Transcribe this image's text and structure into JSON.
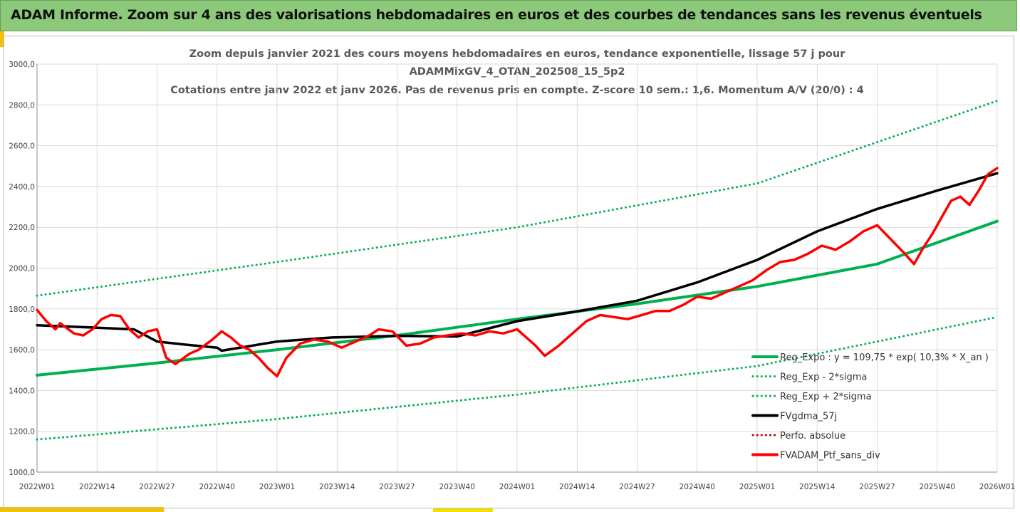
{
  "banner": {
    "title": "ADAM Informe. Zoom sur 4 ans des valorisations hebdomadaires en euros et des courbes de tendances sans les revenus éventuels"
  },
  "colors": {
    "banner_bg": "#8cc97a",
    "reg_expo": "#00b050",
    "fvgdma": "#000000",
    "perfo_absolue": "#c00000",
    "fvadam": "#ff0000"
  },
  "chart_data": {
    "type": "line",
    "title_lines": [
      "Zoom depuis janvier 2021 des cours moyens hebdomadaires  en euros, tendance exponentielle, lissage 57 j pour",
      "ADAMMixGV_4_OTAN_202508_15_5p2",
      "Cotations entre janv 2022 et janv 2026. Pas de revenus pris en compte. Z-score 10 sem.: 1,6. Momentum A/V (20/0) : 4"
    ],
    "x_tick_labels": [
      "2022W01",
      "2022W14",
      "2022W27",
      "2022W40",
      "2023W01",
      "2023W14",
      "2023W27",
      "2023W40",
      "2024W01",
      "2024W14",
      "2024W27",
      "2024W40",
      "2025W01",
      "2025W14",
      "2025W27",
      "2025W40",
      "2026W01"
    ],
    "y_tick_labels": [
      "1000,0",
      "1200,0",
      "1400,0",
      "1600,0",
      "1800,0",
      "2000,0",
      "2200,0",
      "2400,0",
      "2600,0",
      "2800,0",
      "3000,0"
    ],
    "ylim": [
      1000,
      3000
    ],
    "x_range_weeks": [
      0,
      208
    ],
    "grid": "horizontal and vertical gridlines",
    "legend_position": "bottom-right inside plot",
    "series": [
      {
        "name": "Reg_Expo : y = 109,75 * exp( 10,3% *  X_an )",
        "style": "solid",
        "color": "#00b050",
        "points": [
          [
            0,
            1475
          ],
          [
            26,
            1535
          ],
          [
            52,
            1600
          ],
          [
            78,
            1670
          ],
          [
            104,
            1750
          ],
          [
            130,
            1825
          ],
          [
            156,
            1910
          ],
          [
            182,
            2020
          ],
          [
            208,
            2230
          ]
        ]
      },
      {
        "name": "Reg_Exp - 2*sigma",
        "style": "dotted",
        "color": "#00b050",
        "points": [
          [
            0,
            1160
          ],
          [
            52,
            1260
          ],
          [
            104,
            1380
          ],
          [
            156,
            1520
          ],
          [
            208,
            1760
          ]
        ]
      },
      {
        "name": "Reg_Exp + 2*sigma",
        "style": "dotted",
        "color": "#00b050",
        "points": [
          [
            0,
            1865
          ],
          [
            52,
            2030
          ],
          [
            104,
            2200
          ],
          [
            156,
            2415
          ],
          [
            208,
            2820
          ]
        ]
      },
      {
        "name": "FVgdma_57j",
        "style": "solid",
        "color": "#000000",
        "points": [
          [
            0,
            1720
          ],
          [
            13,
            1708
          ],
          [
            21,
            1700
          ],
          [
            26,
            1640
          ],
          [
            32,
            1625
          ],
          [
            39,
            1610
          ],
          [
            40,
            1595
          ],
          [
            52,
            1640
          ],
          [
            64,
            1660
          ],
          [
            78,
            1668
          ],
          [
            91,
            1665
          ],
          [
            104,
            1740
          ],
          [
            115,
            1780
          ],
          [
            130,
            1840
          ],
          [
            143,
            1930
          ],
          [
            156,
            2040
          ],
          [
            169,
            2180
          ],
          [
            182,
            2290
          ],
          [
            195,
            2380
          ],
          [
            208,
            2465
          ]
        ]
      },
      {
        "name": "Perfo. absolue",
        "style": "dotted",
        "color": "#c00000",
        "points": []
      },
      {
        "name": "FVADAM_Ptf_sans_div",
        "style": "solid",
        "color": "#ff0000",
        "points": [
          [
            0,
            1795
          ],
          [
            2,
            1740
          ],
          [
            4,
            1700
          ],
          [
            5,
            1730
          ],
          [
            8,
            1680
          ],
          [
            10,
            1670
          ],
          [
            12,
            1700
          ],
          [
            14,
            1750
          ],
          [
            16,
            1770
          ],
          [
            18,
            1765
          ],
          [
            20,
            1700
          ],
          [
            22,
            1660
          ],
          [
            24,
            1690
          ],
          [
            26,
            1700
          ],
          [
            28,
            1560
          ],
          [
            30,
            1530
          ],
          [
            33,
            1580
          ],
          [
            35,
            1600
          ],
          [
            38,
            1650
          ],
          [
            40,
            1690
          ],
          [
            42,
            1660
          ],
          [
            44,
            1620
          ],
          [
            46,
            1600
          ],
          [
            48,
            1560
          ],
          [
            50,
            1510
          ],
          [
            52,
            1470
          ],
          [
            54,
            1560
          ],
          [
            57,
            1630
          ],
          [
            60,
            1650
          ],
          [
            63,
            1640
          ],
          [
            66,
            1610
          ],
          [
            69,
            1640
          ],
          [
            72,
            1670
          ],
          [
            74,
            1700
          ],
          [
            77,
            1690
          ],
          [
            80,
            1620
          ],
          [
            83,
            1630
          ],
          [
            86,
            1660
          ],
          [
            89,
            1670
          ],
          [
            92,
            1680
          ],
          [
            95,
            1670
          ],
          [
            98,
            1690
          ],
          [
            101,
            1680
          ],
          [
            104,
            1700
          ],
          [
            106,
            1660
          ],
          [
            108,
            1620
          ],
          [
            110,
            1570
          ],
          [
            113,
            1620
          ],
          [
            116,
            1680
          ],
          [
            119,
            1740
          ],
          [
            122,
            1770
          ],
          [
            125,
            1760
          ],
          [
            128,
            1750
          ],
          [
            131,
            1770
          ],
          [
            134,
            1790
          ],
          [
            137,
            1790
          ],
          [
            140,
            1820
          ],
          [
            143,
            1860
          ],
          [
            146,
            1850
          ],
          [
            149,
            1880
          ],
          [
            152,
            1910
          ],
          [
            155,
            1940
          ],
          [
            158,
            1990
          ],
          [
            161,
            2030
          ],
          [
            164,
            2040
          ],
          [
            167,
            2070
          ],
          [
            170,
            2110
          ],
          [
            173,
            2090
          ],
          [
            176,
            2130
          ],
          [
            179,
            2180
          ],
          [
            182,
            2210
          ],
          [
            185,
            2140
          ],
          [
            188,
            2070
          ],
          [
            190,
            2020
          ],
          [
            192,
            2100
          ],
          [
            194,
            2170
          ],
          [
            196,
            2250
          ],
          [
            198,
            2330
          ],
          [
            200,
            2350
          ],
          [
            202,
            2310
          ],
          [
            204,
            2380
          ],
          [
            206,
            2460
          ],
          [
            208,
            2490
          ]
        ]
      }
    ]
  }
}
